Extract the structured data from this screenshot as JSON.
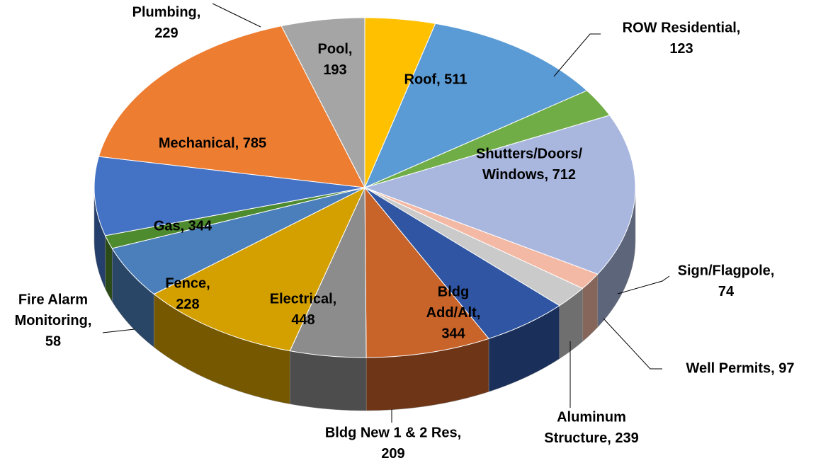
{
  "chart_data": {
    "type": "pie3d",
    "labels": [
      [
        "Pool,",
        "193"
      ],
      [
        "Roof, 511"
      ],
      [
        "ROW Residential,",
        "123"
      ],
      [
        "Shutters/Doors/",
        "Windows, 712"
      ],
      [
        "Sign/Flagpole,",
        "74"
      ],
      [
        "Well Permits, 97"
      ],
      [
        "Aluminum",
        "Structure, 239"
      ],
      [
        "Bldg",
        "Add/Alt,",
        "344"
      ],
      [
        "Bldg New 1 & 2 Res,",
        "209"
      ],
      [
        "Electrical,",
        "448"
      ],
      [
        "Fence,",
        "228"
      ],
      [
        "Fire Alarm",
        "Monitoring,",
        "58"
      ],
      [
        "Gas, 344"
      ],
      [
        "Mechanical, 785"
      ],
      [
        "Plumbing,",
        "229"
      ]
    ],
    "values": [
      193,
      511,
      123,
      712,
      74,
      97,
      239,
      344,
      209,
      448,
      228,
      58,
      344,
      785,
      229
    ],
    "colors": [
      "#ffc000",
      "#5b9bd5",
      "#70ad47",
      "#a9b7df",
      "#f4b9a5",
      "#cacaca",
      "#2f55a3",
      "#c8632a",
      "#8c8c8c",
      "#d4a000",
      "#4a7fbb",
      "#4e8a2e",
      "#4472c4",
      "#ed7d31",
      "#a5a5a5"
    ]
  }
}
